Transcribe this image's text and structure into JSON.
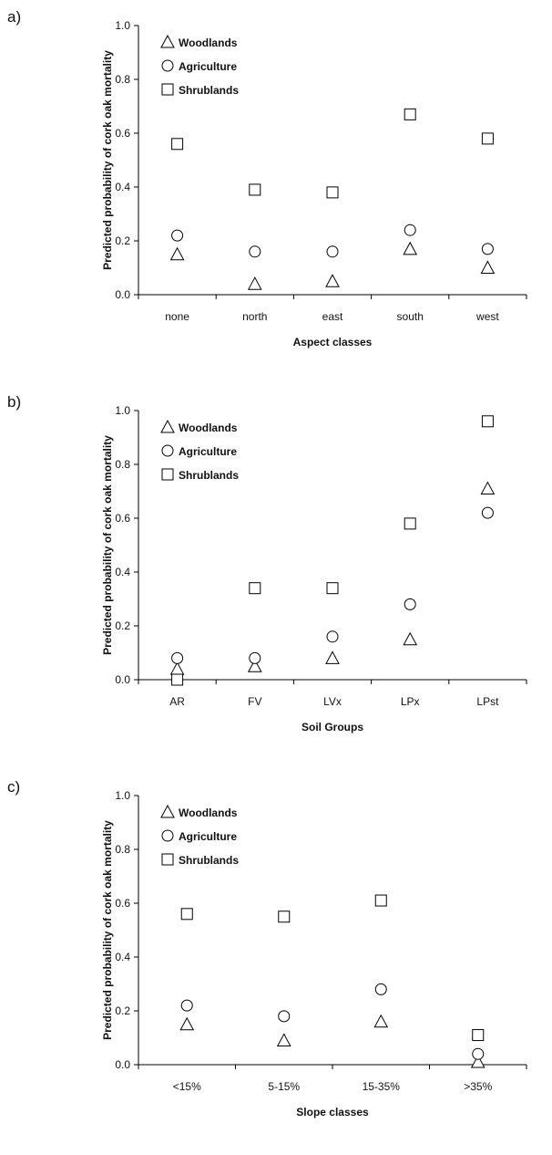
{
  "chart_data": [
    {
      "type": "scatter",
      "panel_label": "a)",
      "categories": [
        "none",
        "north",
        "east",
        "south",
        "west"
      ],
      "xlabel": "Aspect classes",
      "ylabel": "Predicted probability of cork oak mortality",
      "ylim": [
        0,
        1
      ],
      "yticks": [
        "0.0",
        "0.2",
        "0.4",
        "0.6",
        "0.8",
        "1.0"
      ],
      "grid": false,
      "legend_position": "top-left",
      "series": [
        {
          "name": "Woodlands",
          "marker": "triangle",
          "values": [
            0.15,
            0.04,
            0.05,
            0.17,
            0.1
          ]
        },
        {
          "name": "Agriculture",
          "marker": "circle",
          "values": [
            0.22,
            0.16,
            0.16,
            0.24,
            0.17
          ]
        },
        {
          "name": "Shrublands",
          "marker": "square",
          "values": [
            0.56,
            0.39,
            0.38,
            0.67,
            0.58
          ]
        }
      ]
    },
    {
      "type": "scatter",
      "panel_label": "b)",
      "categories": [
        "AR",
        "FV",
        "LVx",
        "LPx",
        "LPst"
      ],
      "xlabel": "Soil Groups",
      "ylabel": "Predicted probability of cork oak mortality",
      "ylim": [
        0,
        1
      ],
      "yticks": [
        "0.0",
        "0.2",
        "0.4",
        "0.6",
        "0.8",
        "1.0"
      ],
      "grid": false,
      "legend_position": "top-left",
      "series": [
        {
          "name": "Woodlands",
          "marker": "triangle",
          "values": [
            0.04,
            0.05,
            0.08,
            0.15,
            0.71
          ]
        },
        {
          "name": "Agriculture",
          "marker": "circle",
          "values": [
            0.08,
            0.08,
            0.16,
            0.28,
            0.62
          ]
        },
        {
          "name": "Shrublands",
          "marker": "square",
          "values": [
            0.0,
            0.34,
            0.34,
            0.58,
            0.96
          ]
        }
      ]
    },
    {
      "type": "scatter",
      "panel_label": "c)",
      "categories": [
        "<15%",
        "5-15%",
        "15-35%",
        ">35%"
      ],
      "xlabel": "Slope classes",
      "ylabel": "Predicted probability of cork oak mortality",
      "ylim": [
        0,
        1
      ],
      "yticks": [
        "0.0",
        "0.2",
        "0.4",
        "0.6",
        "0.8",
        "1.0"
      ],
      "grid": false,
      "legend_position": "top-left",
      "series": [
        {
          "name": "Woodlands",
          "marker": "triangle",
          "values": [
            0.15,
            0.09,
            0.16,
            0.01
          ]
        },
        {
          "name": "Agriculture",
          "marker": "circle",
          "values": [
            0.22,
            0.18,
            0.28,
            0.04
          ]
        },
        {
          "name": "Shrublands",
          "marker": "square",
          "values": [
            0.56,
            0.55,
            0.61,
            0.11
          ]
        }
      ]
    }
  ]
}
